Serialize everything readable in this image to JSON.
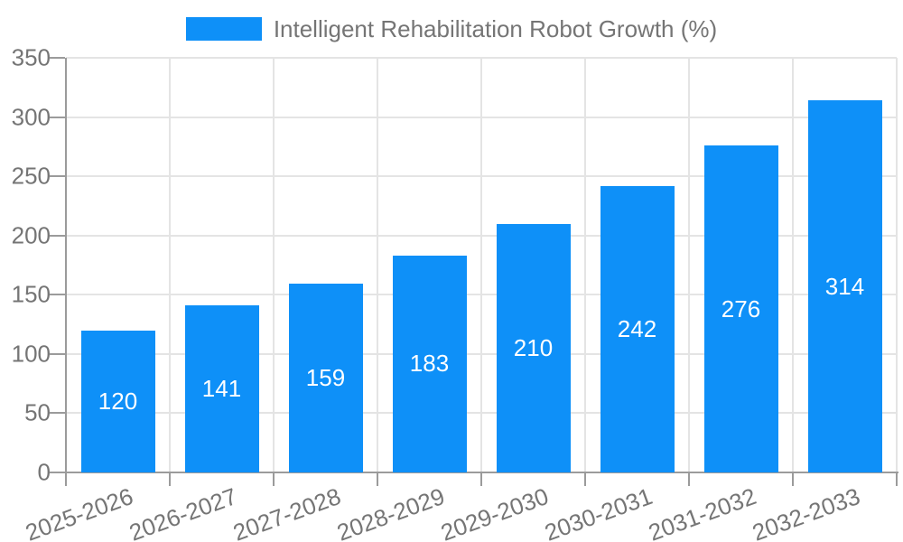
{
  "chart_data": {
    "type": "bar",
    "legend": "Intelligent Rehabilitation Robot Growth (%)",
    "categories": [
      "2025-2026",
      "2026-2027",
      "2027-2028",
      "2028-2029",
      "2029-2030",
      "2030-2031",
      "2031-2032",
      "2032-2033"
    ],
    "values": [
      120,
      141,
      159,
      183,
      210,
      242,
      276,
      314
    ],
    "xlabel": "",
    "ylabel": "",
    "ylim": [
      0,
      350
    ],
    "ytick_step": 50,
    "grid": "on",
    "legend_position": "top-center",
    "colors": {
      "bar": "#0E90F8",
      "grid": "#e4e4e4",
      "axis": "#9b9b9b",
      "text": "#757575",
      "value_label": "#ffffff",
      "background": "#ffffff"
    }
  }
}
